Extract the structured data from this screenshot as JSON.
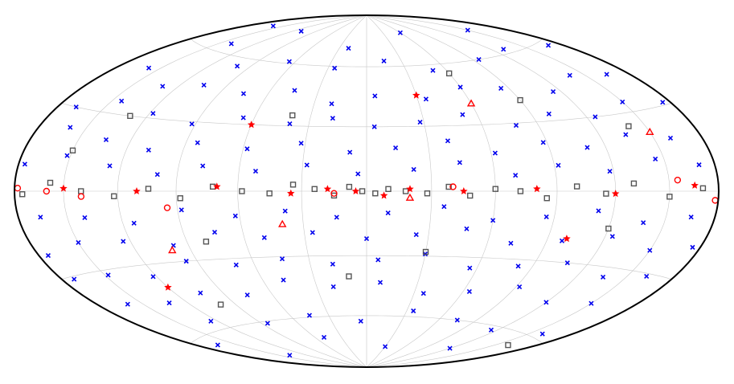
{
  "chart_data": {
    "type": "scatter",
    "projection": "hammer-aitoff",
    "xlim": [
      180,
      -180
    ],
    "ylim": [
      -90,
      90
    ],
    "meridians": [
      -150,
      -120,
      -90,
      -60,
      -30,
      0,
      30,
      60,
      90,
      120,
      150
    ],
    "parallels": [
      -60,
      -30,
      0,
      30,
      60
    ],
    "grid": true,
    "grid_color": "#c8c8c8",
    "frame_color": "#000000",
    "series": [
      {
        "color": "#0000ee",
        "marker": "x",
        "x": [
          -150,
          -60,
          20,
          110,
          160,
          -170,
          -130,
          -95,
          -50,
          -15,
          25,
          65,
          100,
          140,
          -165,
          -140,
          -115,
          -85,
          -60,
          -35,
          -5,
          20,
          45,
          75,
          105,
          130,
          158,
          -175,
          -150,
          -125,
          -100,
          -78,
          -52,
          -28,
          -4,
          18,
          40,
          66,
          92,
          118,
          144,
          168,
          -160,
          -135,
          -110,
          -88,
          -62,
          -40,
          -14,
          8,
          32,
          58,
          84,
          108,
          134,
          160,
          -170,
          -145,
          -118,
          -92,
          -70,
          -44,
          -22,
          4,
          28,
          52,
          78,
          100,
          126,
          152,
          176,
          -165,
          -138,
          -112,
          -86,
          -60,
          -36,
          -10,
          14,
          38,
          62,
          88,
          114,
          140,
          166,
          -175,
          -150,
          -124,
          -98,
          -72,
          -48,
          -24,
          0,
          26,
          50,
          74,
          98,
          124,
          150,
          174,
          -162,
          -136,
          -108,
          -82,
          -56,
          -30,
          -6,
          18,
          44,
          70,
          96,
          122,
          148,
          172,
          -150,
          -120,
          -92,
          -64,
          -36,
          -8,
          20,
          48,
          76,
          104,
          132,
          160,
          -160,
          -115,
          -75,
          -35,
          5,
          45,
          85,
          125,
          165,
          -120,
          -30,
          50,
          140
        ],
        "values": [
          72,
          78,
          70,
          76,
          74,
          58,
          62,
          60,
          57,
          63,
          59,
          61,
          56,
          64,
          44,
          47,
          42,
          46,
          48,
          43,
          45,
          41,
          47,
          44,
          46,
          43,
          48,
          31,
          34,
          30,
          33,
          29,
          35,
          32,
          30,
          34,
          31,
          33,
          29,
          32,
          35,
          30,
          19,
          22,
          18,
          21,
          17,
          23,
          20,
          18,
          22,
          19,
          21,
          17,
          20,
          23,
          9,
          12,
          8,
          11,
          7,
          13,
          10,
          8,
          12,
          9,
          11,
          7,
          10,
          13,
          9,
          -9,
          -12,
          -8,
          -11,
          -13,
          -7,
          -10,
          -12,
          -9,
          -11,
          -8,
          -13,
          -10,
          -9,
          -19,
          -22,
          -18,
          -21,
          -23,
          -17,
          -20,
          -22,
          -19,
          -21,
          -18,
          -23,
          -20,
          -19,
          -22,
          -31,
          -34,
          -30,
          -33,
          -35,
          -29,
          -32,
          -34,
          -31,
          -33,
          -30,
          -35,
          -32,
          -31,
          -44,
          -47,
          -42,
          -46,
          -48,
          -43,
          -45,
          -41,
          -47,
          -44,
          -46,
          -43,
          -58,
          -62,
          -60,
          -57,
          -63,
          -59,
          -61,
          -56,
          -64,
          -73,
          -77,
          -71,
          -76
        ]
      },
      {
        "color": "#555555",
        "marker": "square",
        "x": [
          -170,
          -150,
          -130,
          -115,
          -100,
          -85,
          -72,
          -60,
          -48,
          -38,
          -28,
          -18,
          -10,
          -4,
          2,
          8,
          15,
          24,
          34,
          45,
          58,
          72,
          88,
          104,
          122,
          140,
          158,
          175,
          -140,
          -90,
          -30,
          40,
          100,
          150,
          -120,
          -60,
          10,
          80,
          130,
          -160
        ],
        "values": [
          1,
          -2,
          3,
          -1,
          2,
          -3,
          0,
          1,
          -2,
          2,
          -1,
          0,
          1,
          -1,
          0,
          2,
          -2,
          1,
          3,
          -1,
          0,
          2,
          -3,
          1,
          -2,
          0,
          3,
          -1,
          25,
          40,
          -28,
          35,
          -50,
          15,
          -15,
          55,
          -40,
          -22,
          30,
          -65
        ]
      },
      {
        "color": "#ff0000",
        "marker": "star",
        "x": [
          -165,
          -120,
          -80,
          -45,
          -20,
          -8,
          5,
          18,
          35,
          70,
          110,
          150,
          -100,
          60,
          -30,
          120
        ],
        "values": [
          2,
          -1,
          1,
          0,
          1,
          -2,
          0,
          1,
          -1,
          2,
          0,
          1,
          -20,
          30,
          45,
          -40
        ]
      },
      {
        "color": "#ff0000",
        "marker": "circle",
        "x": [
          178,
          160,
          140,
          -178,
          -155,
          -40,
          15,
          95
        ],
        "values": [
          1,
          0,
          -2,
          -3,
          4,
          2,
          -1,
          -7
        ]
      },
      {
        "color": "#ff0000",
        "marker": "triangle",
        "x": [
          -150,
          -20,
          40,
          100,
          -60
        ],
        "values": [
          22,
          -3,
          -15,
          -25,
          40
        ]
      }
    ]
  }
}
